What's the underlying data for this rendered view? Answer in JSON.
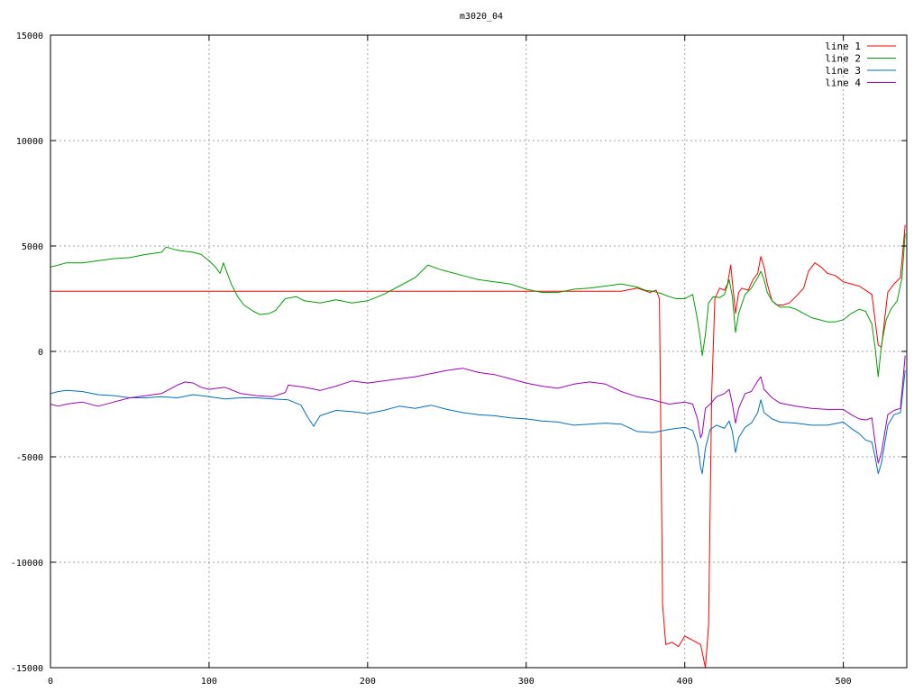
{
  "chart_data": {
    "type": "line",
    "title": "m3020_04",
    "xlabel": "",
    "ylabel": "",
    "xlim": [
      0,
      540
    ],
    "ylim": [
      -15000,
      15000
    ],
    "x_ticks": [
      0,
      100,
      200,
      300,
      400,
      500
    ],
    "y_ticks": [
      -15000,
      -10000,
      -5000,
      0,
      5000,
      10000,
      15000
    ],
    "grid": true,
    "legend_position": "top-right",
    "series": [
      {
        "name": "line 1",
        "color": "#ff0000",
        "points": [
          [
            0,
            2850
          ],
          [
            360,
            2850
          ],
          [
            370,
            3000
          ],
          [
            378,
            2800
          ],
          [
            382,
            2900
          ],
          [
            384,
            2500
          ],
          [
            386,
            -12000
          ],
          [
            388,
            -13900
          ],
          [
            392,
            -13800
          ],
          [
            396,
            -14000
          ],
          [
            400,
            -13500
          ],
          [
            405,
            -13700
          ],
          [
            410,
            -13900
          ],
          [
            413,
            -15000
          ],
          [
            415,
            -13000
          ],
          [
            417,
            -2000
          ],
          [
            419,
            2500
          ],
          [
            422,
            3000
          ],
          [
            425,
            2900
          ],
          [
            427,
            3200
          ],
          [
            429,
            4100
          ],
          [
            430,
            3300
          ],
          [
            432,
            1800
          ],
          [
            434,
            2800
          ],
          [
            436,
            3000
          ],
          [
            440,
            2900
          ],
          [
            443,
            3400
          ],
          [
            446,
            3700
          ],
          [
            448,
            4500
          ],
          [
            450,
            4000
          ],
          [
            452,
            3200
          ],
          [
            455,
            2400
          ],
          [
            458,
            2200
          ],
          [
            462,
            2200
          ],
          [
            466,
            2300
          ],
          [
            470,
            2600
          ],
          [
            475,
            3000
          ],
          [
            478,
            3800
          ],
          [
            482,
            4200
          ],
          [
            486,
            4000
          ],
          [
            490,
            3700
          ],
          [
            495,
            3600
          ],
          [
            500,
            3300
          ],
          [
            505,
            3200
          ],
          [
            510,
            3100
          ],
          [
            514,
            2900
          ],
          [
            518,
            2700
          ],
          [
            520,
            1500
          ],
          [
            522,
            300
          ],
          [
            524,
            200
          ],
          [
            526,
            1500
          ],
          [
            528,
            2800
          ],
          [
            532,
            3200
          ],
          [
            536,
            3500
          ],
          [
            539,
            6000
          ]
        ]
      },
      {
        "name": "line 2",
        "color": "#00a000",
        "points": [
          [
            0,
            4000
          ],
          [
            5,
            4100
          ],
          [
            10,
            4200
          ],
          [
            20,
            4200
          ],
          [
            30,
            4300
          ],
          [
            40,
            4400
          ],
          [
            50,
            4450
          ],
          [
            60,
            4600
          ],
          [
            70,
            4700
          ],
          [
            73,
            4950
          ],
          [
            80,
            4800
          ],
          [
            90,
            4700
          ],
          [
            95,
            4600
          ],
          [
            100,
            4300
          ],
          [
            104,
            4000
          ],
          [
            106,
            3800
          ],
          [
            107,
            3700
          ],
          [
            109,
            4200
          ],
          [
            111,
            3800
          ],
          [
            114,
            3200
          ],
          [
            118,
            2600
          ],
          [
            122,
            2200
          ],
          [
            128,
            1900
          ],
          [
            132,
            1750
          ],
          [
            138,
            1800
          ],
          [
            142,
            1950
          ],
          [
            148,
            2500
          ],
          [
            155,
            2600
          ],
          [
            160,
            2400
          ],
          [
            170,
            2300
          ],
          [
            180,
            2450
          ],
          [
            190,
            2300
          ],
          [
            200,
            2400
          ],
          [
            210,
            2700
          ],
          [
            220,
            3100
          ],
          [
            230,
            3500
          ],
          [
            238,
            4100
          ],
          [
            245,
            3900
          ],
          [
            250,
            3800
          ],
          [
            260,
            3600
          ],
          [
            270,
            3400
          ],
          [
            280,
            3300
          ],
          [
            290,
            3200
          ],
          [
            300,
            2950
          ],
          [
            310,
            2800
          ],
          [
            320,
            2800
          ],
          [
            330,
            2950
          ],
          [
            340,
            3000
          ],
          [
            350,
            3100
          ],
          [
            360,
            3200
          ],
          [
            370,
            3050
          ],
          [
            375,
            2900
          ],
          [
            380,
            2850
          ],
          [
            385,
            2750
          ],
          [
            390,
            2600
          ],
          [
            395,
            2500
          ],
          [
            400,
            2500
          ],
          [
            405,
            2700
          ],
          [
            408,
            1500
          ],
          [
            410,
            500
          ],
          [
            411,
            -200
          ],
          [
            413,
            800
          ],
          [
            415,
            2300
          ],
          [
            418,
            2600
          ],
          [
            422,
            2550
          ],
          [
            425,
            2700
          ],
          [
            428,
            3400
          ],
          [
            430,
            2600
          ],
          [
            432,
            900
          ],
          [
            434,
            1800
          ],
          [
            438,
            2700
          ],
          [
            442,
            3000
          ],
          [
            446,
            3500
          ],
          [
            448,
            3800
          ],
          [
            450,
            3400
          ],
          [
            452,
            2800
          ],
          [
            455,
            2400
          ],
          [
            460,
            2100
          ],
          [
            466,
            2100
          ],
          [
            470,
            2000
          ],
          [
            475,
            1800
          ],
          [
            480,
            1600
          ],
          [
            485,
            1500
          ],
          [
            490,
            1400
          ],
          [
            495,
            1400
          ],
          [
            500,
            1500
          ],
          [
            505,
            1800
          ],
          [
            510,
            2000
          ],
          [
            514,
            1900
          ],
          [
            518,
            1300
          ],
          [
            520,
            200
          ],
          [
            522,
            -1200
          ],
          [
            524,
            300
          ],
          [
            527,
            1500
          ],
          [
            530,
            2000
          ],
          [
            534,
            2400
          ],
          [
            537,
            3500
          ],
          [
            539,
            5600
          ]
        ]
      },
      {
        "name": "line 3",
        "color": "#0070c0",
        "points": [
          [
            0,
            -2000
          ],
          [
            5,
            -1900
          ],
          [
            10,
            -1850
          ],
          [
            20,
            -1900
          ],
          [
            30,
            -2050
          ],
          [
            40,
            -2100
          ],
          [
            50,
            -2200
          ],
          [
            60,
            -2200
          ],
          [
            70,
            -2150
          ],
          [
            80,
            -2200
          ],
          [
            90,
            -2050
          ],
          [
            100,
            -2150
          ],
          [
            110,
            -2250
          ],
          [
            120,
            -2200
          ],
          [
            130,
            -2200
          ],
          [
            140,
            -2250
          ],
          [
            150,
            -2300
          ],
          [
            158,
            -2550
          ],
          [
            162,
            -3100
          ],
          [
            166,
            -3550
          ],
          [
            170,
            -3050
          ],
          [
            180,
            -2800
          ],
          [
            190,
            -2850
          ],
          [
            200,
            -2950
          ],
          [
            210,
            -2800
          ],
          [
            220,
            -2600
          ],
          [
            230,
            -2700
          ],
          [
            240,
            -2550
          ],
          [
            250,
            -2750
          ],
          [
            260,
            -2900
          ],
          [
            270,
            -3000
          ],
          [
            280,
            -3050
          ],
          [
            290,
            -3150
          ],
          [
            300,
            -3200
          ],
          [
            310,
            -3300
          ],
          [
            320,
            -3350
          ],
          [
            330,
            -3500
          ],
          [
            340,
            -3450
          ],
          [
            350,
            -3400
          ],
          [
            360,
            -3450
          ],
          [
            370,
            -3800
          ],
          [
            380,
            -3850
          ],
          [
            390,
            -3700
          ],
          [
            400,
            -3600
          ],
          [
            405,
            -3750
          ],
          [
            408,
            -4400
          ],
          [
            410,
            -5500
          ],
          [
            411,
            -5800
          ],
          [
            413,
            -4600
          ],
          [
            416,
            -3700
          ],
          [
            420,
            -3500
          ],
          [
            425,
            -3650
          ],
          [
            428,
            -3300
          ],
          [
            430,
            -3800
          ],
          [
            432,
            -4800
          ],
          [
            434,
            -4100
          ],
          [
            438,
            -3600
          ],
          [
            442,
            -3400
          ],
          [
            446,
            -2900
          ],
          [
            448,
            -2300
          ],
          [
            450,
            -2900
          ],
          [
            455,
            -3200
          ],
          [
            460,
            -3350
          ],
          [
            470,
            -3400
          ],
          [
            480,
            -3500
          ],
          [
            490,
            -3500
          ],
          [
            500,
            -3350
          ],
          [
            505,
            -3650
          ],
          [
            510,
            -3900
          ],
          [
            514,
            -4200
          ],
          [
            518,
            -4300
          ],
          [
            520,
            -5000
          ],
          [
            522,
            -5800
          ],
          [
            524,
            -5300
          ],
          [
            528,
            -3500
          ],
          [
            532,
            -3000
          ],
          [
            536,
            -2900
          ],
          [
            539,
            -900
          ]
        ]
      },
      {
        "name": "line 4",
        "color": "#a000c0",
        "points": [
          [
            0,
            -2500
          ],
          [
            5,
            -2600
          ],
          [
            10,
            -2500
          ],
          [
            20,
            -2400
          ],
          [
            30,
            -2600
          ],
          [
            40,
            -2400
          ],
          [
            50,
            -2200
          ],
          [
            60,
            -2100
          ],
          [
            70,
            -2000
          ],
          [
            80,
            -1600
          ],
          [
            85,
            -1450
          ],
          [
            90,
            -1500
          ],
          [
            95,
            -1700
          ],
          [
            100,
            -1800
          ],
          [
            110,
            -1700
          ],
          [
            120,
            -2000
          ],
          [
            130,
            -2100
          ],
          [
            140,
            -2150
          ],
          [
            148,
            -1950
          ],
          [
            150,
            -1600
          ],
          [
            160,
            -1700
          ],
          [
            170,
            -1850
          ],
          [
            180,
            -1650
          ],
          [
            190,
            -1400
          ],
          [
            200,
            -1500
          ],
          [
            210,
            -1400
          ],
          [
            220,
            -1300
          ],
          [
            230,
            -1200
          ],
          [
            240,
            -1050
          ],
          [
            250,
            -900
          ],
          [
            260,
            -800
          ],
          [
            270,
            -1000
          ],
          [
            280,
            -1100
          ],
          [
            290,
            -1300
          ],
          [
            300,
            -1500
          ],
          [
            310,
            -1650
          ],
          [
            320,
            -1750
          ],
          [
            330,
            -1550
          ],
          [
            340,
            -1450
          ],
          [
            350,
            -1550
          ],
          [
            360,
            -1900
          ],
          [
            370,
            -2150
          ],
          [
            380,
            -2300
          ],
          [
            390,
            -2500
          ],
          [
            400,
            -2400
          ],
          [
            405,
            -2500
          ],
          [
            408,
            -3200
          ],
          [
            410,
            -4100
          ],
          [
            411,
            -3900
          ],
          [
            413,
            -2700
          ],
          [
            416,
            -2500
          ],
          [
            420,
            -2150
          ],
          [
            425,
            -2000
          ],
          [
            428,
            -1800
          ],
          [
            430,
            -2500
          ],
          [
            432,
            -3400
          ],
          [
            434,
            -2700
          ],
          [
            438,
            -2000
          ],
          [
            442,
            -1900
          ],
          [
            446,
            -1400
          ],
          [
            448,
            -1200
          ],
          [
            450,
            -1800
          ],
          [
            455,
            -2200
          ],
          [
            460,
            -2450
          ],
          [
            470,
            -2600
          ],
          [
            480,
            -2700
          ],
          [
            490,
            -2750
          ],
          [
            500,
            -2750
          ],
          [
            505,
            -3000
          ],
          [
            510,
            -3200
          ],
          [
            514,
            -3250
          ],
          [
            518,
            -3150
          ],
          [
            520,
            -4300
          ],
          [
            522,
            -5300
          ],
          [
            524,
            -4800
          ],
          [
            528,
            -3000
          ],
          [
            532,
            -2800
          ],
          [
            536,
            -2700
          ],
          [
            539,
            -200
          ]
        ]
      }
    ]
  }
}
